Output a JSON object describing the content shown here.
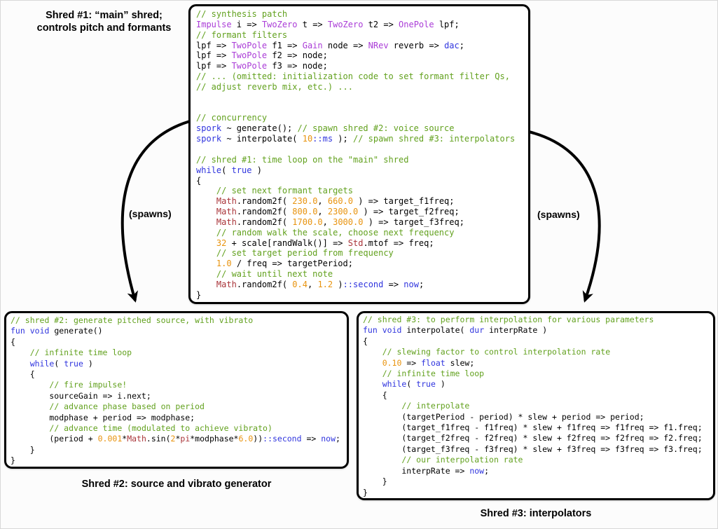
{
  "palette": {
    "comment": "#62a11e",
    "keyword": "#2f34de",
    "type": "#aa3cd7",
    "lib": "#a93439",
    "number": "#e8930e",
    "plain": "#000000"
  },
  "labels": {
    "main_label_line1": "Shred #1: “main” shred;",
    "main_label_line2": "controls pitch and formants",
    "spawns_left": "(spawns)",
    "spawns_right": "(spawns)",
    "caption_shred2": "Shred #2: source and vibrato generator",
    "caption_shred3": "Shred #3: interpolators"
  },
  "boxes": {
    "shred1": {
      "lines": [
        [
          [
            "comment",
            "// synthesis patch"
          ]
        ],
        [
          [
            "type",
            "Impulse"
          ],
          [
            "plain",
            " i => "
          ],
          [
            "type",
            "TwoZero"
          ],
          [
            "plain",
            " t => "
          ],
          [
            "type",
            "TwoZero"
          ],
          [
            "plain",
            " t2 => "
          ],
          [
            "type",
            "OnePole"
          ],
          [
            "plain",
            " lpf;"
          ]
        ],
        [
          [
            "comment",
            "// formant filters"
          ]
        ],
        [
          [
            "plain",
            "lpf => "
          ],
          [
            "type",
            "TwoPole"
          ],
          [
            "plain",
            " f1 => "
          ],
          [
            "type",
            "Gain"
          ],
          [
            "plain",
            " node => "
          ],
          [
            "type",
            "NRev"
          ],
          [
            "plain",
            " reverb => "
          ],
          [
            "keyword",
            "dac"
          ],
          [
            "plain",
            ";"
          ]
        ],
        [
          [
            "plain",
            "lpf => "
          ],
          [
            "type",
            "TwoPole"
          ],
          [
            "plain",
            " f2 => node;"
          ]
        ],
        [
          [
            "plain",
            "lpf => "
          ],
          [
            "type",
            "TwoPole"
          ],
          [
            "plain",
            " f3 => node;"
          ]
        ],
        [
          [
            "comment",
            "// ... (omitted: initialization code to set formant filter Qs,"
          ]
        ],
        [
          [
            "comment",
            "// adjust reverb mix, etc.) ..."
          ]
        ],
        [],
        [],
        [
          [
            "comment",
            "// concurrency"
          ]
        ],
        [
          [
            "keyword",
            "spork"
          ],
          [
            "plain",
            " ~ generate(); "
          ],
          [
            "comment",
            "// spawn shred #2: voice source"
          ]
        ],
        [
          [
            "keyword",
            "spork"
          ],
          [
            "plain",
            " ~ interpolate( "
          ],
          [
            "number",
            "10"
          ],
          [
            "keyword",
            "::ms"
          ],
          [
            "plain",
            " ); "
          ],
          [
            "comment",
            "// spawn shred #3: interpolators"
          ]
        ],
        [],
        [
          [
            "comment",
            "// shred #1: time loop on the \"main\" shred"
          ]
        ],
        [
          [
            "keyword",
            "while"
          ],
          [
            "plain",
            "( "
          ],
          [
            "keyword",
            "true"
          ],
          [
            "plain",
            " )"
          ]
        ],
        [
          [
            "plain",
            "{"
          ]
        ],
        [
          [
            "plain",
            "    "
          ],
          [
            "comment",
            "// set next formant targets"
          ]
        ],
        [
          [
            "plain",
            "    "
          ],
          [
            "lib",
            "Math"
          ],
          [
            "plain",
            ".random2f( "
          ],
          [
            "number",
            "230.0"
          ],
          [
            "plain",
            ", "
          ],
          [
            "number",
            "660.0"
          ],
          [
            "plain",
            " ) => target_f1freq;"
          ]
        ],
        [
          [
            "plain",
            "    "
          ],
          [
            "lib",
            "Math"
          ],
          [
            "plain",
            ".random2f( "
          ],
          [
            "number",
            "800.0"
          ],
          [
            "plain",
            ", "
          ],
          [
            "number",
            "2300.0"
          ],
          [
            "plain",
            " ) => target_f2freq;"
          ]
        ],
        [
          [
            "plain",
            "    "
          ],
          [
            "lib",
            "Math"
          ],
          [
            "plain",
            ".random2f( "
          ],
          [
            "number",
            "1700.0"
          ],
          [
            "plain",
            ", "
          ],
          [
            "number",
            "3000.0"
          ],
          [
            "plain",
            " ) => target_f3freq;"
          ]
        ],
        [
          [
            "plain",
            "    "
          ],
          [
            "comment",
            "// random walk the scale, choose next frequency"
          ]
        ],
        [
          [
            "plain",
            "    "
          ],
          [
            "number",
            "32"
          ],
          [
            "plain",
            " + scale[randWalk()] => "
          ],
          [
            "lib",
            "Std"
          ],
          [
            "plain",
            ".mtof => freq;"
          ]
        ],
        [
          [
            "plain",
            "    "
          ],
          [
            "comment",
            "// set target period from frequency"
          ]
        ],
        [
          [
            "plain",
            "    "
          ],
          [
            "number",
            "1.0"
          ],
          [
            "plain",
            " / freq => targetPeriod;"
          ]
        ],
        [
          [
            "plain",
            "    "
          ],
          [
            "comment",
            "// wait until next note"
          ]
        ],
        [
          [
            "plain",
            "    "
          ],
          [
            "lib",
            "Math"
          ],
          [
            "plain",
            ".random2f( "
          ],
          [
            "number",
            "0.4"
          ],
          [
            "plain",
            ", "
          ],
          [
            "number",
            "1.2"
          ],
          [
            "plain",
            " )"
          ],
          [
            "keyword",
            "::second"
          ],
          [
            "plain",
            " => "
          ],
          [
            "keyword",
            "now"
          ],
          [
            "plain",
            ";"
          ]
        ],
        [
          [
            "plain",
            "}"
          ]
        ]
      ]
    },
    "shred2": {
      "lines": [
        [
          [
            "comment",
            "// shred #2: generate pitched source, with vibrato"
          ]
        ],
        [
          [
            "keyword",
            "fun"
          ],
          [
            "plain",
            " "
          ],
          [
            "keyword",
            "void"
          ],
          [
            "plain",
            " generate()"
          ]
        ],
        [
          [
            "plain",
            "{"
          ]
        ],
        [
          [
            "plain",
            "    "
          ],
          [
            "comment",
            "// infinite time loop"
          ]
        ],
        [
          [
            "plain",
            "    "
          ],
          [
            "keyword",
            "while"
          ],
          [
            "plain",
            "( "
          ],
          [
            "keyword",
            "true"
          ],
          [
            "plain",
            " )"
          ]
        ],
        [
          [
            "plain",
            "    {"
          ]
        ],
        [
          [
            "plain",
            "        "
          ],
          [
            "comment",
            "// fire impulse!"
          ]
        ],
        [
          [
            "plain",
            "        sourceGain => i.next;"
          ]
        ],
        [
          [
            "plain",
            "        "
          ],
          [
            "comment",
            "// advance phase based on period"
          ]
        ],
        [
          [
            "plain",
            "        modphase + period => modphase;"
          ]
        ],
        [
          [
            "plain",
            "        "
          ],
          [
            "comment",
            "// advance time (modulated to achieve vibrato)"
          ]
        ],
        [
          [
            "plain",
            "        (period + "
          ],
          [
            "number",
            "0.001"
          ],
          [
            "plain",
            "*"
          ],
          [
            "lib",
            "Math"
          ],
          [
            "plain",
            ".sin("
          ],
          [
            "number",
            "2"
          ],
          [
            "plain",
            "*"
          ],
          [
            "lib",
            "pi"
          ],
          [
            "plain",
            "*modphase*"
          ],
          [
            "number",
            "6.0"
          ],
          [
            "plain",
            "))"
          ],
          [
            "keyword",
            "::second"
          ],
          [
            "plain",
            " => "
          ],
          [
            "keyword",
            "now"
          ],
          [
            "plain",
            ";"
          ]
        ],
        [
          [
            "plain",
            "    }"
          ]
        ],
        [
          [
            "plain",
            "}"
          ]
        ]
      ]
    },
    "shred3": {
      "lines": [
        [
          [
            "comment",
            "// shred #3: to perform interpolation for various parameters"
          ]
        ],
        [
          [
            "keyword",
            "fun"
          ],
          [
            "plain",
            " "
          ],
          [
            "keyword",
            "void"
          ],
          [
            "plain",
            " interpolate( "
          ],
          [
            "keyword",
            "dur"
          ],
          [
            "plain",
            " interpRate )"
          ]
        ],
        [
          [
            "plain",
            "{"
          ]
        ],
        [
          [
            "plain",
            "    "
          ],
          [
            "comment",
            "// slewing factor to control interpolation rate"
          ]
        ],
        [
          [
            "plain",
            "    "
          ],
          [
            "number",
            "0.10"
          ],
          [
            "plain",
            " => "
          ],
          [
            "keyword",
            "float"
          ],
          [
            "plain",
            " slew;"
          ]
        ],
        [
          [
            "plain",
            "    "
          ],
          [
            "comment",
            "// infinite time loop"
          ]
        ],
        [
          [
            "plain",
            "    "
          ],
          [
            "keyword",
            "while"
          ],
          [
            "plain",
            "( "
          ],
          [
            "keyword",
            "true"
          ],
          [
            "plain",
            " )"
          ]
        ],
        [
          [
            "plain",
            "    {"
          ]
        ],
        [
          [
            "plain",
            "        "
          ],
          [
            "comment",
            "// interpolate"
          ]
        ],
        [
          [
            "plain",
            "        (targetPeriod - period) * slew + period => period;"
          ]
        ],
        [
          [
            "plain",
            "        (target_f1freq - f1freq) * slew + f1freq => f1freq => f1.freq;"
          ]
        ],
        [
          [
            "plain",
            "        (target_f2freq - f2freq) * slew + f2freq => f2freq => f2.freq;"
          ]
        ],
        [
          [
            "plain",
            "        (target_f3freq - f3freq) * slew + f3freq => f3freq => f3.freq;"
          ]
        ],
        [
          [
            "plain",
            "        "
          ],
          [
            "comment",
            "// our interpolation rate"
          ]
        ],
        [
          [
            "plain",
            "        interpRate => "
          ],
          [
            "keyword",
            "now"
          ],
          [
            "plain",
            ";"
          ]
        ],
        [
          [
            "plain",
            "    }"
          ]
        ],
        [
          [
            "plain",
            "}"
          ]
        ]
      ]
    }
  }
}
